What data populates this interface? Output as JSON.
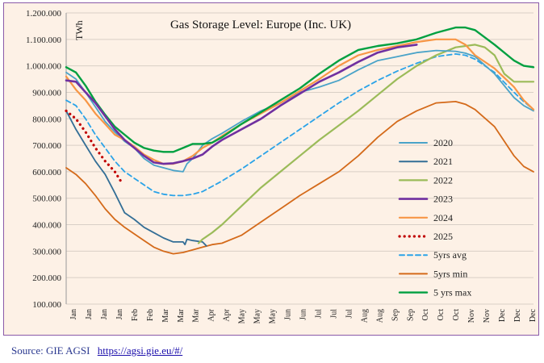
{
  "source": {
    "label": "Source: GIE AGSI",
    "link_text": "https://agsi.gie.eu/#/"
  },
  "chart_data": {
    "type": "line",
    "title": "Gas Storage Level: Europe (Inc. UK)",
    "ylabel": "TWh",
    "xlabel": "",
    "ylim": [
      100,
      1200
    ],
    "y_ticks": [
      "100.000",
      "200.000",
      "300.000",
      "400.000",
      "500.000",
      "600.000",
      "700.000",
      "800.000",
      "900.000",
      "1.000.000",
      "1.100.000",
      "1.200.000"
    ],
    "x_ticks": [
      "Jan",
      "Jan",
      "Jan",
      "Jan",
      "Feb",
      "Feb",
      "Mar",
      "Mar",
      "Mar",
      "Apr",
      "Apr",
      "May",
      "May",
      "May",
      "Jun",
      "Jun",
      "Jul",
      "Jul",
      "Jul",
      "Aug",
      "Aug",
      "Sep",
      "Sep",
      "Oct",
      "Oct",
      "Oct",
      "Nov",
      "Nov",
      "Dec",
      "Dec",
      "Dec"
    ],
    "x_unit": "month",
    "grid": true,
    "legend_position": "right-inside",
    "series": [
      {
        "name": "2020",
        "color": "#4aa3c8",
        "style": "solid",
        "width": 1.8,
        "points": [
          [
            0,
            975
          ],
          [
            0.25,
            950
          ],
          [
            0.5,
            900
          ],
          [
            0.75,
            845
          ],
          [
            1,
            790
          ],
          [
            1.25,
            750
          ],
          [
            1.5,
            715
          ],
          [
            1.75,
            690
          ],
          [
            2,
            650
          ],
          [
            2.25,
            625
          ],
          [
            2.5,
            615
          ],
          [
            2.75,
            605
          ],
          [
            3,
            600
          ],
          [
            3.05,
            615
          ],
          [
            3.1,
            630
          ],
          [
            3.25,
            650
          ],
          [
            3.5,
            700
          ],
          [
            3.75,
            725
          ],
          [
            4,
            745
          ],
          [
            4.5,
            790
          ],
          [
            5,
            830
          ],
          [
            5.5,
            860
          ],
          [
            6,
            900
          ],
          [
            6.5,
            920
          ],
          [
            7,
            945
          ],
          [
            7.5,
            985
          ],
          [
            8,
            1020
          ],
          [
            8.5,
            1035
          ],
          [
            9,
            1050
          ],
          [
            9.5,
            1058
          ],
          [
            10,
            1055
          ],
          [
            10.25,
            1048
          ],
          [
            10.5,
            1035
          ],
          [
            11,
            970
          ],
          [
            11.5,
            880
          ],
          [
            11.75,
            850
          ],
          [
            12,
            830
          ]
        ]
      },
      {
        "name": "2021",
        "color": "#336e96",
        "style": "solid",
        "width": 1.8,
        "points": [
          [
            0,
            830
          ],
          [
            0.25,
            760
          ],
          [
            0.5,
            700
          ],
          [
            0.75,
            640
          ],
          [
            1,
            590
          ],
          [
            1.25,
            520
          ],
          [
            1.5,
            445
          ],
          [
            1.75,
            420
          ],
          [
            2,
            390
          ],
          [
            2.25,
            370
          ],
          [
            2.5,
            350
          ],
          [
            2.75,
            335
          ],
          [
            3,
            335
          ],
          [
            3.05,
            325
          ],
          [
            3.1,
            345
          ],
          [
            3.25,
            340
          ],
          [
            3.5,
            335
          ],
          [
            3.6,
            320
          ]
        ]
      },
      {
        "name": "2022",
        "color": "#9bbb59",
        "style": "solid",
        "width": 2.2,
        "points": [
          [
            3.4,
            330
          ],
          [
            3.5,
            345
          ],
          [
            3.75,
            370
          ],
          [
            4,
            400
          ],
          [
            4.5,
            470
          ],
          [
            5,
            540
          ],
          [
            5.5,
            600
          ],
          [
            6,
            660
          ],
          [
            6.5,
            720
          ],
          [
            7,
            775
          ],
          [
            7.5,
            830
          ],
          [
            8,
            890
          ],
          [
            8.5,
            950
          ],
          [
            9,
            1000
          ],
          [
            9.5,
            1040
          ],
          [
            10,
            1070
          ],
          [
            10.5,
            1080
          ],
          [
            10.75,
            1070
          ],
          [
            11,
            1040
          ],
          [
            11.25,
            970
          ],
          [
            11.5,
            940
          ],
          [
            11.75,
            940
          ],
          [
            12,
            940
          ]
        ]
      },
      {
        "name": "2023",
        "color": "#7030a0",
        "style": "solid",
        "width": 2.6,
        "points": [
          [
            0,
            945
          ],
          [
            0.25,
            940
          ],
          [
            0.5,
            900
          ],
          [
            0.75,
            860
          ],
          [
            1,
            810
          ],
          [
            1.25,
            760
          ],
          [
            1.5,
            720
          ],
          [
            1.75,
            690
          ],
          [
            2,
            660
          ],
          [
            2.25,
            635
          ],
          [
            2.5,
            630
          ],
          [
            2.75,
            632
          ],
          [
            3,
            640
          ],
          [
            3.25,
            650
          ],
          [
            3.5,
            665
          ],
          [
            3.75,
            695
          ],
          [
            4,
            720
          ],
          [
            4.5,
            760
          ],
          [
            5,
            800
          ],
          [
            5.5,
            850
          ],
          [
            6,
            895
          ],
          [
            6.5,
            940
          ],
          [
            7,
            975
          ],
          [
            7.5,
            1015
          ],
          [
            8,
            1050
          ],
          [
            8.5,
            1070
          ],
          [
            9,
            1080
          ]
        ]
      },
      {
        "name": "2024",
        "color": "#f79646",
        "style": "solid",
        "width": 2.2,
        "points": [
          [
            0,
            960
          ],
          [
            0.25,
            910
          ],
          [
            0.5,
            870
          ],
          [
            0.75,
            820
          ],
          [
            1,
            780
          ],
          [
            1.25,
            740
          ],
          [
            1.5,
            720
          ],
          [
            1.75,
            695
          ],
          [
            2,
            665
          ],
          [
            2.25,
            645
          ],
          [
            2.5,
            630
          ],
          [
            2.75,
            630
          ],
          [
            3,
            640
          ],
          [
            3.25,
            660
          ],
          [
            3.5,
            690
          ],
          [
            3.75,
            710
          ],
          [
            4,
            735
          ],
          [
            4.5,
            780
          ],
          [
            5,
            820
          ],
          [
            5.5,
            860
          ],
          [
            6,
            905
          ],
          [
            6.5,
            950
          ],
          [
            7,
            1000
          ],
          [
            7.5,
            1040
          ],
          [
            8,
            1060
          ],
          [
            8.5,
            1075
          ],
          [
            9,
            1090
          ],
          [
            9.5,
            1100
          ],
          [
            10,
            1100
          ],
          [
            10.25,
            1080
          ],
          [
            10.5,
            1040
          ],
          [
            11,
            990
          ],
          [
            11.5,
            920
          ],
          [
            11.75,
            870
          ],
          [
            12,
            835
          ]
        ]
      },
      {
        "name": "2025",
        "color": "#c00000",
        "style": "dotted",
        "width": 3.2,
        "points": [
          [
            0,
            830
          ],
          [
            0.25,
            800
          ],
          [
            0.5,
            750
          ],
          [
            0.75,
            690
          ],
          [
            1,
            640
          ],
          [
            1.25,
            600
          ],
          [
            1.4,
            565
          ]
        ]
      },
      {
        "name": "5yrs avg",
        "color": "#2aa3e8",
        "style": "dashed",
        "width": 1.8,
        "points": [
          [
            0,
            870
          ],
          [
            0.25,
            850
          ],
          [
            0.5,
            800
          ],
          [
            0.75,
            740
          ],
          [
            1,
            690
          ],
          [
            1.25,
            640
          ],
          [
            1.5,
            600
          ],
          [
            1.75,
            575
          ],
          [
            2,
            550
          ],
          [
            2.25,
            525
          ],
          [
            2.5,
            515
          ],
          [
            2.75,
            510
          ],
          [
            3,
            510
          ],
          [
            3.25,
            515
          ],
          [
            3.5,
            525
          ],
          [
            3.75,
            545
          ],
          [
            4,
            565
          ],
          [
            4.5,
            610
          ],
          [
            5,
            660
          ],
          [
            5.5,
            710
          ],
          [
            6,
            760
          ],
          [
            6.5,
            810
          ],
          [
            7,
            860
          ],
          [
            7.5,
            905
          ],
          [
            8,
            945
          ],
          [
            8.5,
            980
          ],
          [
            9,
            1010
          ],
          [
            9.5,
            1035
          ],
          [
            10,
            1045
          ],
          [
            10.25,
            1040
          ],
          [
            10.5,
            1025
          ],
          [
            11,
            975
          ],
          [
            11.5,
            900
          ],
          [
            11.75,
            865
          ],
          [
            12,
            835
          ]
        ]
      },
      {
        "name": "5yrs min",
        "color": "#d46a1a",
        "style": "solid",
        "width": 1.8,
        "points": [
          [
            0,
            615
          ],
          [
            0.25,
            590
          ],
          [
            0.5,
            555
          ],
          [
            0.75,
            510
          ],
          [
            1,
            460
          ],
          [
            1.25,
            420
          ],
          [
            1.5,
            390
          ],
          [
            1.75,
            365
          ],
          [
            2,
            340
          ],
          [
            2.25,
            315
          ],
          [
            2.5,
            300
          ],
          [
            2.75,
            290
          ],
          [
            3,
            295
          ],
          [
            3.25,
            305
          ],
          [
            3.5,
            315
          ],
          [
            3.75,
            325
          ],
          [
            4,
            330
          ],
          [
            4.5,
            360
          ],
          [
            5,
            410
          ],
          [
            5.5,
            460
          ],
          [
            6,
            510
          ],
          [
            6.5,
            555
          ],
          [
            7,
            600
          ],
          [
            7.5,
            660
          ],
          [
            8,
            730
          ],
          [
            8.5,
            790
          ],
          [
            9,
            830
          ],
          [
            9.5,
            860
          ],
          [
            10,
            865
          ],
          [
            10.25,
            855
          ],
          [
            10.5,
            835
          ],
          [
            11,
            770
          ],
          [
            11.5,
            660
          ],
          [
            11.75,
            620
          ],
          [
            12,
            600
          ]
        ]
      },
      {
        "name": "5 yrs max",
        "color": "#00a040",
        "style": "solid",
        "width": 2.4,
        "points": [
          [
            0,
            995
          ],
          [
            0.25,
            975
          ],
          [
            0.5,
            925
          ],
          [
            0.75,
            865
          ],
          [
            1,
            815
          ],
          [
            1.25,
            770
          ],
          [
            1.5,
            740
          ],
          [
            1.75,
            710
          ],
          [
            2,
            690
          ],
          [
            2.25,
            680
          ],
          [
            2.5,
            675
          ],
          [
            2.75,
            675
          ],
          [
            3,
            690
          ],
          [
            3.25,
            705
          ],
          [
            3.5,
            705
          ],
          [
            3.75,
            710
          ],
          [
            4,
            730
          ],
          [
            4.5,
            780
          ],
          [
            5,
            825
          ],
          [
            5.5,
            870
          ],
          [
            6,
            915
          ],
          [
            6.5,
            970
          ],
          [
            7,
            1020
          ],
          [
            7.5,
            1060
          ],
          [
            8,
            1075
          ],
          [
            8.5,
            1085
          ],
          [
            9,
            1100
          ],
          [
            9.5,
            1125
          ],
          [
            10,
            1145
          ],
          [
            10.25,
            1145
          ],
          [
            10.5,
            1135
          ],
          [
            11,
            1080
          ],
          [
            11.5,
            1020
          ],
          [
            11.75,
            1000
          ],
          [
            12,
            995
          ]
        ]
      }
    ]
  }
}
